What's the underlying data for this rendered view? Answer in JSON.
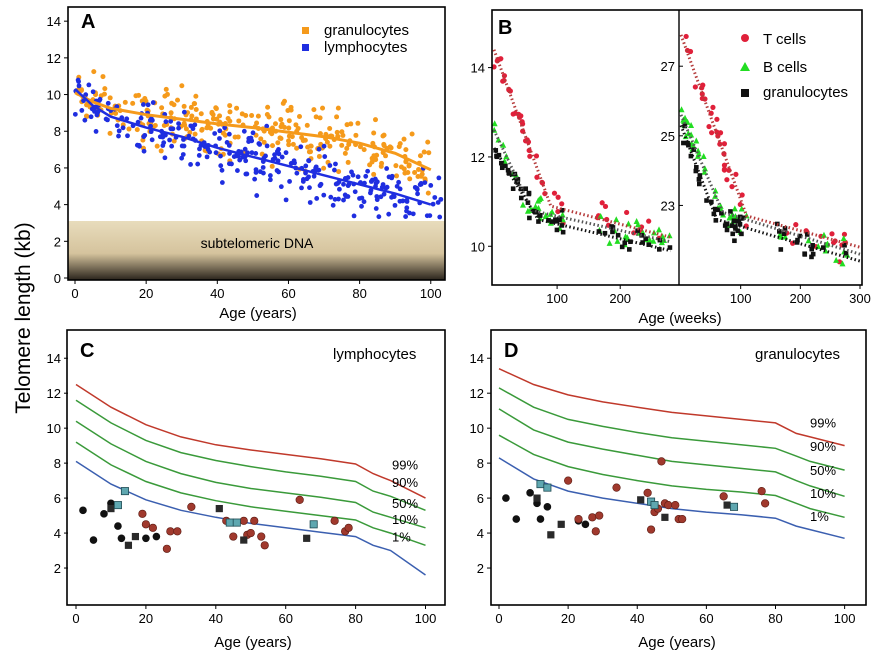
{
  "figure": {
    "ylabel": "Telomere length (kb)",
    "colors": {
      "orange": "#f59a1b",
      "blue": "#1f2ee0",
      "red": "#e0203a",
      "green": "#22dd22",
      "black": "#111111",
      "curve_red": "#c0392b",
      "curve_green": "#3a9a3a",
      "curve_blue": "#3b5fb0",
      "dot_red": "#a0392d",
      "sq_teal": "#5fa7b0"
    }
  },
  "chart_data": [
    {
      "panel": "A",
      "type": "scatter",
      "xlabel": "Age (years)",
      "xlim": [
        0,
        104
      ],
      "ylim": [
        0,
        14.5
      ],
      "xticks": [
        "0",
        "20",
        "40",
        "60",
        "80",
        "100"
      ],
      "yticks": [
        "0",
        "2",
        "4",
        "6",
        "8",
        "10",
        "12",
        "14"
      ],
      "legend": [
        "granulocytes",
        "lymphocytes"
      ],
      "legend_position": "top-right",
      "band_label": "subtelomeric DNA",
      "band_range": [
        0,
        3.1
      ],
      "series": [
        {
          "name": "granulocytes",
          "trend_x": [
            0,
            5,
            10,
            20,
            30,
            40,
            50,
            60,
            70,
            80,
            90,
            100
          ],
          "trend_y": [
            10.1,
            9.6,
            9.25,
            8.9,
            8.65,
            8.4,
            8.2,
            7.95,
            7.7,
            7.35,
            6.8,
            5.9
          ]
        },
        {
          "name": "lymphocytes",
          "trend_x": [
            0,
            5,
            10,
            20,
            30,
            40,
            50,
            60,
            70,
            80,
            90,
            100
          ],
          "trend_y": [
            10.3,
            9.4,
            8.8,
            8.2,
            7.7,
            7.1,
            6.6,
            6.1,
            5.6,
            5.1,
            4.6,
            4.0
          ]
        }
      ]
    },
    {
      "panel": "B",
      "type": "scatter",
      "xlabel": "Age (weeks)",
      "legend": [
        "T cells",
        "B cells",
        "granulocytes"
      ],
      "legend_position": "top-right",
      "left": {
        "xlim": [
          0,
          290
        ],
        "ylim": [
          9.2,
          15.2
        ],
        "xticks": [
          "100",
          "200"
        ],
        "yticks": [
          "10",
          "12",
          "14"
        ],
        "trends": [
          {
            "name": "T cells",
            "x": [
              0,
              90,
              280
            ],
            "y": [
              14.4,
              10.9,
              10.2
            ]
          },
          {
            "name": "B cells",
            "x": [
              0,
              60,
              280
            ],
            "y": [
              12.6,
              10.8,
              10.1
            ]
          },
          {
            "name": "granulocytes",
            "x": [
              0,
              70,
              280
            ],
            "y": [
              12.2,
              10.6,
              9.9
            ]
          }
        ]
      },
      "right": {
        "xlim": [
          0,
          300
        ],
        "ylim": [
          20.8,
          28.5
        ],
        "xticks": [
          "100",
          "200",
          "300"
        ],
        "yticks": [
          "23",
          "25",
          "27"
        ],
        "trends": [
          {
            "name": "T cells",
            "x": [
              0,
              110,
              300
            ],
            "y": [
              27.9,
              22.7,
              21.8
            ]
          },
          {
            "name": "B cells",
            "x": [
              0,
              70,
              300
            ],
            "y": [
              25.6,
              22.8,
              21.6
            ]
          },
          {
            "name": "granulocytes",
            "x": [
              0,
              60,
              300
            ],
            "y": [
              25.3,
              22.6,
              21.4
            ]
          }
        ]
      }
    },
    {
      "panel": "C",
      "type": "line",
      "title": "lymphocytes",
      "xlabel": "Age (years)",
      "xlim": [
        0,
        103
      ],
      "ylim": [
        0,
        15.5
      ],
      "xticks": [
        "0",
        "20",
        "40",
        "60",
        "80",
        "100"
      ],
      "yticks": [
        "2",
        "4",
        "6",
        "8",
        "10",
        "12",
        "14"
      ],
      "percentiles": [
        {
          "name": "99%",
          "x": [
            0,
            10,
            20,
            30,
            40,
            50,
            60,
            70,
            80,
            85,
            90,
            100
          ],
          "y": [
            12.5,
            11.2,
            10.2,
            9.5,
            9.05,
            8.75,
            8.5,
            8.25,
            7.95,
            7.4,
            7.0,
            6.0
          ]
        },
        {
          "name": "90%",
          "x": [
            0,
            10,
            20,
            30,
            40,
            50,
            60,
            70,
            80,
            85,
            90,
            100
          ],
          "y": [
            11.6,
            10.3,
            9.3,
            8.6,
            8.15,
            7.8,
            7.5,
            7.25,
            6.95,
            6.4,
            6.1,
            5.3
          ]
        },
        {
          "name": "50%",
          "x": [
            0,
            10,
            20,
            30,
            40,
            50,
            60,
            70,
            80,
            85,
            90,
            100
          ],
          "y": [
            10.4,
            9.1,
            8.1,
            7.4,
            6.9,
            6.55,
            6.3,
            6.05,
            5.75,
            5.2,
            4.9,
            4.3
          ]
        },
        {
          "name": "10%",
          "x": [
            0,
            10,
            20,
            30,
            40,
            50,
            60,
            70,
            80,
            85,
            90,
            100
          ],
          "y": [
            9.2,
            7.9,
            6.95,
            6.3,
            5.85,
            5.5,
            5.25,
            5.0,
            4.75,
            4.3,
            4.0,
            3.3
          ]
        },
        {
          "name": "1%",
          "x": [
            0,
            10,
            20,
            30,
            40,
            50,
            60,
            70,
            80,
            85,
            90,
            100
          ],
          "y": [
            8.1,
            6.8,
            5.9,
            5.3,
            4.9,
            4.55,
            4.3,
            4.05,
            3.8,
            3.3,
            3.0,
            1.6
          ]
        }
      ],
      "points": {
        "black_dots": [
          [
            2,
            5.3
          ],
          [
            5,
            3.6
          ],
          [
            8,
            5.1
          ],
          [
            10,
            5.7
          ],
          [
            12,
            4.4
          ],
          [
            13,
            3.7
          ],
          [
            20,
            3.7
          ],
          [
            23,
            3.8
          ]
        ],
        "black_squares": [
          [
            10,
            5.4
          ],
          [
            15,
            3.3
          ],
          [
            17,
            3.8
          ],
          [
            41,
            5.4
          ],
          [
            48,
            3.6
          ],
          [
            66,
            3.7
          ]
        ],
        "teal_squares": [
          [
            12,
            5.6
          ],
          [
            14,
            6.4
          ],
          [
            44,
            4.6
          ],
          [
            46,
            4.6
          ],
          [
            68,
            4.5
          ]
        ],
        "red_dots": [
          [
            19,
            5.1
          ],
          [
            20,
            4.5
          ],
          [
            22,
            4.3
          ],
          [
            26,
            3.1
          ],
          [
            27,
            4.1
          ],
          [
            29,
            4.1
          ],
          [
            33,
            5.5
          ],
          [
            43,
            4.7
          ],
          [
            45,
            3.8
          ],
          [
            48,
            4.7
          ],
          [
            49,
            3.9
          ],
          [
            50,
            4.0
          ],
          [
            51,
            4.7
          ],
          [
            53,
            3.8
          ],
          [
            54,
            3.3
          ],
          [
            64,
            5.9
          ],
          [
            74,
            4.7
          ],
          [
            77,
            4.1
          ],
          [
            78,
            4.3
          ]
        ]
      }
    },
    {
      "panel": "D",
      "type": "line",
      "title": "granulocytes",
      "xlabel": "Age (years)",
      "xlim": [
        0,
        103
      ],
      "ylim": [
        0,
        15.5
      ],
      "xticks": [
        "0",
        "20",
        "40",
        "60",
        "80",
        "100"
      ],
      "yticks": [
        "2",
        "4",
        "6",
        "8",
        "10",
        "12",
        "14"
      ],
      "percentiles": [
        {
          "name": "99%",
          "x": [
            0,
            10,
            20,
            30,
            40,
            50,
            60,
            70,
            80,
            86,
            90,
            100
          ],
          "y": [
            13.4,
            12.5,
            11.9,
            11.5,
            11.2,
            10.9,
            10.7,
            10.5,
            10.3,
            9.7,
            9.5,
            9.0
          ]
        },
        {
          "name": "90%",
          "x": [
            0,
            10,
            20,
            30,
            40,
            50,
            60,
            70,
            80,
            86,
            90,
            100
          ],
          "y": [
            12.3,
            11.2,
            10.5,
            10.1,
            9.75,
            9.45,
            9.25,
            9.05,
            8.85,
            8.4,
            8.1,
            7.6
          ]
        },
        {
          "name": "50%",
          "x": [
            0,
            10,
            20,
            30,
            40,
            50,
            60,
            70,
            80,
            86,
            90,
            100
          ],
          "y": [
            11.1,
            9.9,
            9.2,
            8.8,
            8.45,
            8.1,
            7.9,
            7.7,
            7.5,
            7.0,
            6.7,
            6.1
          ]
        },
        {
          "name": "10%",
          "x": [
            0,
            10,
            20,
            30,
            40,
            50,
            60,
            70,
            80,
            86,
            90,
            100
          ],
          "y": [
            9.6,
            8.5,
            7.8,
            7.35,
            7.0,
            6.7,
            6.5,
            6.35,
            6.15,
            5.7,
            5.4,
            4.9
          ]
        },
        {
          "name": "1%",
          "x": [
            0,
            10,
            20,
            30,
            40,
            50,
            60,
            70,
            80,
            86,
            90,
            100
          ],
          "y": [
            8.3,
            7.1,
            6.4,
            6.0,
            5.7,
            5.4,
            5.2,
            5.05,
            4.85,
            4.4,
            4.2,
            3.7
          ]
        }
      ],
      "points": {
        "black_dots": [
          [
            2,
            6.0
          ],
          [
            5,
            4.8
          ],
          [
            9,
            6.3
          ],
          [
            11,
            5.7
          ],
          [
            12,
            4.8
          ],
          [
            14,
            5.5
          ],
          [
            23,
            4.7
          ],
          [
            25,
            4.5
          ]
        ],
        "black_squares": [
          [
            11,
            6.0
          ],
          [
            15,
            3.9
          ],
          [
            18,
            4.5
          ],
          [
            41,
            5.9
          ],
          [
            48,
            4.9
          ],
          [
            66,
            5.6
          ]
        ],
        "teal_squares": [
          [
            12,
            6.8
          ],
          [
            14,
            6.6
          ],
          [
            44,
            5.8
          ],
          [
            45,
            5.6
          ],
          [
            68,
            5.5
          ]
        ],
        "red_dots": [
          [
            20,
            7.0
          ],
          [
            23,
            4.8
          ],
          [
            27,
            4.9
          ],
          [
            28,
            4.1
          ],
          [
            29,
            5.0
          ],
          [
            34,
            6.6
          ],
          [
            43,
            6.3
          ],
          [
            44,
            4.2
          ],
          [
            45,
            5.2
          ],
          [
            46,
            5.4
          ],
          [
            47,
            8.1
          ],
          [
            48,
            5.7
          ],
          [
            49,
            5.6
          ],
          [
            51,
            5.6
          ],
          [
            52,
            4.8
          ],
          [
            53,
            4.8
          ],
          [
            65,
            6.1
          ],
          [
            76,
            6.4
          ],
          [
            77,
            5.7
          ]
        ]
      }
    }
  ]
}
